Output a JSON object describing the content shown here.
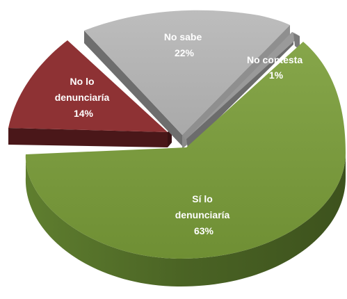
{
  "chart_data": {
    "type": "pie",
    "title": "",
    "slices": [
      {
        "name": "Sí lo denunciaría",
        "label_lines": [
          "Sí lo",
          "denunciaría",
          "63%"
        ],
        "value": 63,
        "color": "#7a9a3e",
        "side_color": "#4f6826"
      },
      {
        "name": "No lo denunciaría",
        "label_lines": [
          "No lo",
          "denunciaría",
          "14%"
        ],
        "value": 14,
        "color": "#8e3234",
        "side_color": "#4a1719"
      },
      {
        "name": "No sabe",
        "label_lines": [
          "No sabe",
          "22%"
        ],
        "value": 22,
        "color": "#b3b3b3",
        "side_color": "#7d7d7d"
      },
      {
        "name": "No contesta",
        "label_lines": [
          "No contesta",
          "1%"
        ],
        "value": 1,
        "color": "#9a9a9a",
        "side_color": "#6c6c6c"
      }
    ]
  }
}
